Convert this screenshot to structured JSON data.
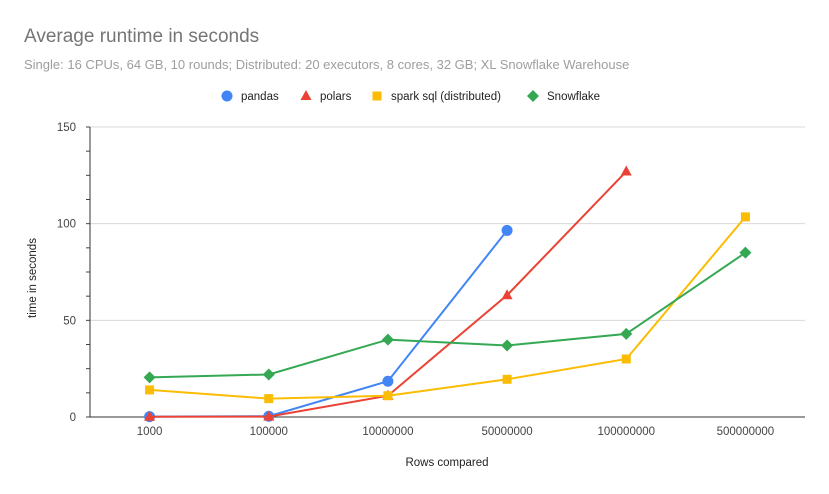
{
  "chart_data": {
    "type": "line",
    "title": "Average runtime in seconds",
    "subtitle": "Single: 16 CPUs, 64 GB, 10 rounds; Distributed: 20 executors, 8 cores, 32 GB; XL Snowflake Warehouse",
    "xlabel": "Rows compared",
    "ylabel": "time in seconds",
    "categories": [
      "1000",
      "100000",
      "10000000",
      "50000000",
      "100000000",
      "500000000"
    ],
    "ylim": [
      0,
      150
    ],
    "yticks": [
      "0",
      "50",
      "100",
      "150"
    ],
    "grid": true,
    "legend_position": "top",
    "series": [
      {
        "name": "pandas",
        "color": "#4285f4",
        "marker": "circle",
        "values": [
          0.2,
          0.4,
          18.5,
          96.5,
          null,
          null
        ]
      },
      {
        "name": "polars",
        "color": "#ea4335",
        "marker": "triangle",
        "values": [
          0.1,
          0.2,
          11.0,
          63.0,
          127.0,
          null
        ]
      },
      {
        "name": "spark sql (distributed)",
        "color": "#fbbc04",
        "marker": "square",
        "values": [
          14.0,
          9.5,
          11.0,
          19.5,
          30.0,
          103.5
        ]
      },
      {
        "name": "Snowflake",
        "color": "#34a853",
        "marker": "diamond",
        "values": [
          20.5,
          22.0,
          40.0,
          37.0,
          43.0,
          85.0
        ]
      }
    ]
  }
}
